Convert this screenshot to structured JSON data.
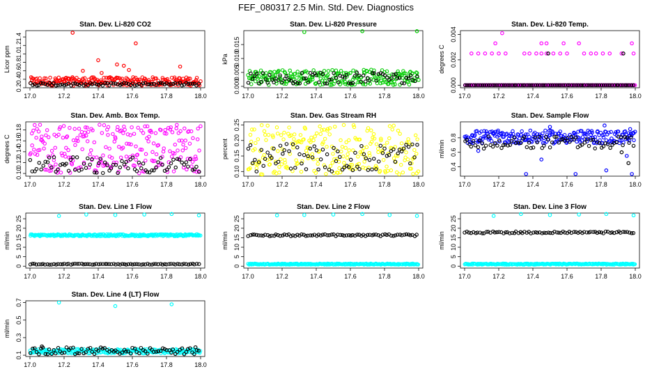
{
  "page_title": "FEF_080317  2.5 Min. Std. Dev. Diagnostics",
  "chart_data": [
    {
      "type": "scatter",
      "title": "Stan. Dev. Li-820 CO2",
      "ylabel": "Licor ppm",
      "xlim": [
        17.0,
        18.0
      ],
      "ylim": [
        0.2,
        1.55
      ],
      "xticks": [
        "17.0",
        "17.2",
        "17.4",
        "17.6",
        "17.8",
        "18.0"
      ],
      "yticks": [
        "0.2",
        "0.4",
        "0.6",
        "0.8",
        "1.0",
        "1.2",
        "1.4"
      ],
      "ytick_values": [
        0.2,
        0.4,
        0.6,
        0.8,
        1.0,
        1.2,
        1.4
      ],
      "series": [
        {
          "color": "#ff0000",
          "band": [
            0.25,
            0.45
          ],
          "outliers": [
            [
              17.25,
              1.5
            ],
            [
              17.62,
              1.25
            ],
            [
              17.4,
              0.85
            ],
            [
              17.51,
              0.75
            ],
            [
              17.55,
              0.72
            ],
            [
              17.31,
              0.6
            ],
            [
              17.88,
              0.7
            ],
            [
              17.58,
              0.62
            ],
            [
              17.42,
              0.55
            ]
          ]
        },
        {
          "color": "#000000",
          "band": [
            0.25,
            0.32
          ],
          "outliers": []
        }
      ]
    },
    {
      "type": "scatter",
      "title": "Stan. Dev. Li-820 Pressure",
      "ylabel": "kPa",
      "xlim": [
        17.0,
        18.0
      ],
      "ylim": [
        -0.0005,
        0.02
      ],
      "xticks": [
        "17.0",
        "17.2",
        "17.4",
        "17.6",
        "17.8",
        "18.0"
      ],
      "yticks": [
        "0.000",
        "0.005",
        "0.010",
        "0.015"
      ],
      "ytick_values": [
        0.0,
        0.005,
        0.01,
        0.015
      ],
      "series": [
        {
          "color": "#00cc00",
          "band": [
            0.0005,
            0.006
          ],
          "outliers": [
            [
              17.33,
              0.0195
            ],
            [
              17.67,
              0.0198
            ],
            [
              17.99,
              0.0198
            ]
          ]
        },
        {
          "color": "#000000",
          "band": [
            0.001,
            0.005
          ],
          "outliers": []
        }
      ]
    },
    {
      "type": "scatter",
      "title": "Stan. Dev. Li-820 Temp.",
      "ylabel": "degrees C",
      "xlim": [
        17.0,
        18.0
      ],
      "ylim": [
        -0.0002,
        0.0043
      ],
      "xticks": [
        "17.0",
        "17.2",
        "17.4",
        "17.6",
        "17.8",
        "18.0"
      ],
      "yticks": [
        "0.000",
        "0.002",
        "0.004"
      ],
      "ytick_values": [
        0.0,
        0.002,
        0.004
      ],
      "series": [
        {
          "color": "#ff00ff",
          "band": [
            0.0,
            0.0
          ],
          "outliers": [
            [
              17.04,
              0.0025
            ],
            [
              17.08,
              0.0025
            ],
            [
              17.12,
              0.0025
            ],
            [
              17.16,
              0.0025
            ],
            [
              17.2,
              0.0025
            ],
            [
              17.24,
              0.0025
            ],
            [
              17.35,
              0.0025
            ],
            [
              17.38,
              0.0025
            ],
            [
              17.42,
              0.0025
            ],
            [
              17.45,
              0.0025
            ],
            [
              17.48,
              0.0025
            ],
            [
              17.52,
              0.0025
            ],
            [
              17.56,
              0.0025
            ],
            [
              17.6,
              0.0025
            ],
            [
              17.7,
              0.0025
            ],
            [
              17.74,
              0.0025
            ],
            [
              17.77,
              0.0025
            ],
            [
              17.81,
              0.0025
            ],
            [
              17.85,
              0.0025
            ],
            [
              17.92,
              0.0025
            ],
            [
              17.99,
              0.0025
            ],
            [
              17.22,
              0.0041
            ],
            [
              17.18,
              0.0033
            ],
            [
              17.45,
              0.0033
            ],
            [
              17.48,
              0.0033
            ],
            [
              17.58,
              0.0033
            ],
            [
              17.67,
              0.0033
            ],
            [
              17.98,
              0.0033
            ]
          ]
        },
        {
          "color": "#000000",
          "band": [
            0.0,
            0.0
          ],
          "outliers": [
            [
              17.49,
              0.0025
            ],
            [
              17.93,
              0.0025
            ]
          ]
        }
      ]
    },
    {
      "type": "scatter",
      "title": "Stan. Dev. Amb. Box Temp.",
      "ylabel": "degrees C",
      "xlim": [
        17.0,
        18.0
      ],
      "ylim": [
        0.095,
        0.195
      ],
      "xticks": [
        "17.0",
        "17.2",
        "17.4",
        "17.6",
        "17.8",
        "18.0"
      ],
      "yticks": [
        "0.10",
        "0.12",
        "0.14",
        "0.16",
        "0.18"
      ],
      "ytick_values": [
        0.1,
        0.12,
        0.14,
        0.16,
        0.18
      ],
      "series": [
        {
          "color": "#ff00ff",
          "band": [
            0.1,
            0.19
          ],
          "outliers": []
        },
        {
          "color": "#000000",
          "band": [
            0.1,
            0.13
          ],
          "outliers": []
        }
      ]
    },
    {
      "type": "scatter",
      "title": "Stan. Dev. Gas Stream RH",
      "ylabel": "percent",
      "xlim": [
        17.0,
        18.0
      ],
      "ylim": [
        0.085,
        0.26
      ],
      "xticks": [
        "17.0",
        "17.2",
        "17.4",
        "17.6",
        "17.8",
        "18.0"
      ],
      "yticks": [
        "0.10",
        "0.15",
        "0.20",
        "0.25"
      ],
      "ytick_values": [
        0.1,
        0.15,
        0.2,
        0.25
      ],
      "series": [
        {
          "color": "#ffff00",
          "band": [
            0.09,
            0.25
          ],
          "outliers": []
        },
        {
          "color": "#000000",
          "band": [
            0.1,
            0.19
          ],
          "outliers": []
        }
      ]
    },
    {
      "type": "scatter",
      "title": "Stan. Dev. Sample Flow",
      "ylabel": "ml/min",
      "xlim": [
        17.0,
        18.0
      ],
      "ylim": [
        0.27,
        1.02
      ],
      "xticks": [
        "17.0",
        "17.2",
        "17.4",
        "17.6",
        "17.8",
        "18.0"
      ],
      "yticks": [
        "0.4",
        "0.6",
        "0.8"
      ],
      "ytick_values": [
        0.4,
        0.6,
        0.8
      ],
      "series": [
        {
          "color": "#0000ff",
          "band": [
            0.72,
            0.9
          ],
          "outliers": [
            [
              17.36,
              0.3
            ],
            [
              17.65,
              0.3
            ],
            [
              17.98,
              0.3
            ],
            [
              17.83,
              0.35
            ],
            [
              17.08,
              0.62
            ],
            [
              17.45,
              0.5
            ],
            [
              17.95,
              0.55
            ],
            [
              17.5,
              0.95
            ],
            [
              17.82,
              0.97
            ],
            [
              17.97,
              0.92
            ]
          ]
        },
        {
          "color": "#000000",
          "band": [
            0.65,
            0.82
          ],
          "outliers": [
            [
              17.96,
              0.45
            ],
            [
              17.92,
              0.6
            ]
          ]
        }
      ]
    },
    {
      "type": "scatter",
      "title": "Stan. Dev. Line 1 Flow",
      "ylabel": "ml/min",
      "xlim": [
        17.0,
        18.0
      ],
      "ylim": [
        -1,
        28
      ],
      "xticks": [
        "17.0",
        "17.2",
        "17.4",
        "17.6",
        "17.8",
        "18.0"
      ],
      "yticks": [
        "0",
        "5",
        "10",
        "15",
        "20",
        "25"
      ],
      "ytick_values": [
        0,
        5,
        10,
        15,
        20,
        25
      ],
      "series": [
        {
          "color": "#00ffff",
          "band": [
            15.8,
            16.8
          ],
          "outliers": [
            [
              17.17,
              26.5
            ],
            [
              17.33,
              27.2
            ],
            [
              17.5,
              27.0
            ],
            [
              17.67,
              27.2
            ],
            [
              17.83,
              27.5
            ],
            [
              17.99,
              26.8
            ]
          ]
        },
        {
          "color": "#000000",
          "band": [
            0.8,
            1.3
          ],
          "outliers": []
        }
      ]
    },
    {
      "type": "scatter",
      "title": "Stan. Dev. Line 2 Flow",
      "ylabel": "ml/min",
      "xlim": [
        17.0,
        18.0
      ],
      "ylim": [
        -1,
        28
      ],
      "xticks": [
        "17.0",
        "17.2",
        "17.4",
        "17.6",
        "17.8",
        "18.0"
      ],
      "yticks": [
        "0",
        "5",
        "10",
        "15",
        "20",
        "25"
      ],
      "ytick_values": [
        0,
        5,
        10,
        15,
        20,
        25
      ],
      "series": [
        {
          "color": "#00ffff",
          "band": [
            0.8,
            1.4
          ],
          "outliers": [
            [
              17.17,
              26.8
            ],
            [
              17.33,
              27.0
            ],
            [
              17.5,
              27.2
            ],
            [
              17.67,
              27.5
            ],
            [
              17.83,
              27.0
            ],
            [
              17.99,
              26.5
            ]
          ]
        },
        {
          "color": "#000000",
          "band": [
            15.8,
            16.8
          ],
          "outliers": []
        }
      ]
    },
    {
      "type": "scatter",
      "title": "Stan. Dev. Line 3 Flow",
      "ylabel": "ml/min",
      "xlim": [
        17.0,
        18.0
      ],
      "ylim": [
        -1,
        28
      ],
      "xticks": [
        "17.0",
        "17.2",
        "17.4",
        "17.6",
        "17.8",
        "18.0"
      ],
      "yticks": [
        "0",
        "5",
        "10",
        "15",
        "20",
        "25"
      ],
      "ytick_values": [
        0,
        5,
        10,
        15,
        20,
        25
      ],
      "series": [
        {
          "color": "#00ffff",
          "band": [
            0.8,
            1.4
          ],
          "outliers": [
            [
              17.17,
              26.5
            ],
            [
              17.33,
              27.5
            ],
            [
              17.5,
              27.0
            ],
            [
              17.67,
              27.2
            ],
            [
              17.83,
              27.5
            ],
            [
              17.99,
              26.8
            ]
          ]
        },
        {
          "color": "#000000",
          "band": [
            17.3,
            18.3
          ],
          "outliers": []
        }
      ]
    },
    {
      "type": "scatter",
      "title": "Stan. Dev. Line 4 (LT) Flow",
      "ylabel": "ml/min",
      "xlim": [
        17.0,
        18.0
      ],
      "ylim": [
        0.085,
        0.72
      ],
      "xticks": [
        "17.0",
        "17.2",
        "17.4",
        "17.6",
        "17.8",
        "18.0"
      ],
      "yticks": [
        "0.1",
        "0.3",
        "0.5",
        "0.7"
      ],
      "ytick_values": [
        0.1,
        0.3,
        0.5,
        0.7
      ],
      "series": [
        {
          "color": "#00ffff",
          "band": [
            0.12,
            0.17
          ],
          "outliers": [
            [
              17.17,
              0.7
            ],
            [
              17.5,
              0.66
            ],
            [
              17.83,
              0.68
            ]
          ]
        },
        {
          "color": "#000000",
          "band": [
            0.11,
            0.19
          ],
          "outliers": [
            [
              17.07,
              0.2
            ],
            [
              17.97,
              0.19
            ]
          ]
        }
      ]
    }
  ]
}
